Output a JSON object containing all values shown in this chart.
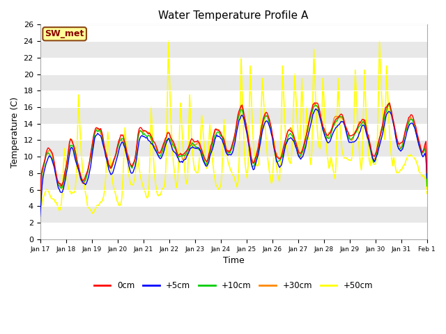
{
  "title": "Water Temperature Profile A",
  "xlabel": "Time",
  "ylabel": "Temperature (C)",
  "ylim": [
    0,
    26
  ],
  "yticks": [
    0,
    2,
    4,
    6,
    8,
    10,
    12,
    14,
    16,
    18,
    20,
    22,
    24,
    26
  ],
  "date_labels": [
    "Jan 17",
    "Jan 18",
    "Jan 19",
    "Jan 20",
    "Jan 21",
    "Jan 22",
    "Jan 23",
    "Jan 24",
    "Jan 25",
    "Jan 26",
    "Jan 27",
    "Jan 28",
    "Jan 29",
    "Jan 30",
    "Jan 31",
    "Feb 1"
  ],
  "series": {
    "0cm": {
      "color": "#FF0000",
      "lw": 1.0
    },
    "+5cm": {
      "color": "#0000FF",
      "lw": 1.0
    },
    "+10cm": {
      "color": "#00CC00",
      "lw": 1.0
    },
    "+30cm": {
      "color": "#FF8800",
      "lw": 1.0
    },
    "+50cm": {
      "color": "#FFFF00",
      "lw": 1.2
    }
  },
  "annotation": {
    "text": "SW_met",
    "fontsize": 9,
    "color": "#8B0000",
    "bg": "#FFFF99",
    "border_color": "#8B4513"
  },
  "bg_color": "#E8E8E8",
  "plot_bg": "#FFFFFF",
  "grid_color": "#FFFFFF",
  "figsize": [
    6.4,
    4.8
  ],
  "dpi": 100
}
